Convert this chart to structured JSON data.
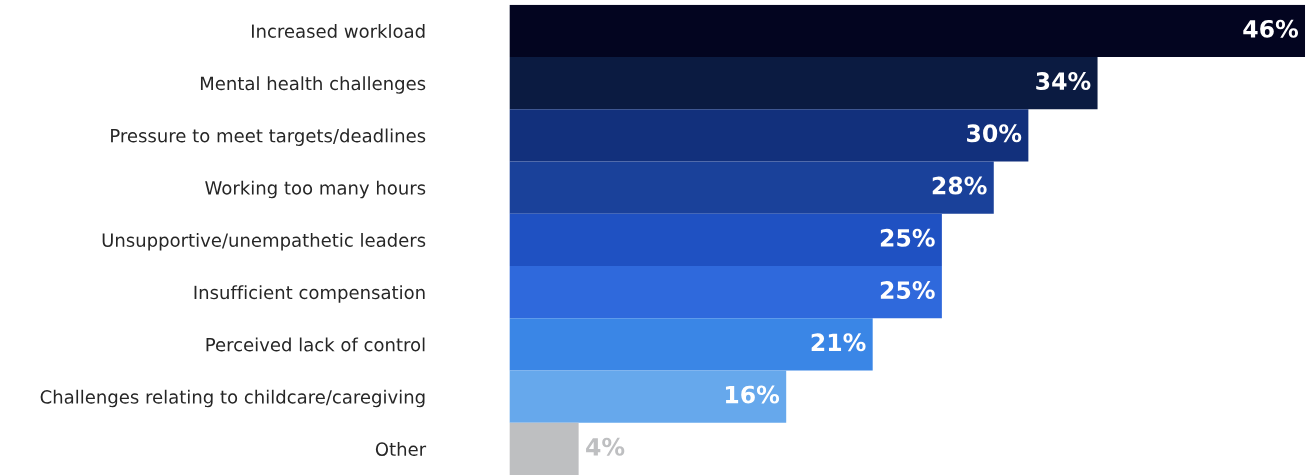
{
  "chart_data": {
    "type": "bar",
    "orientation": "horizontal",
    "categories": [
      "Increased workload",
      "Mental health challenges",
      "Pressure to meet targets/deadlines",
      "Working too many hours",
      "Unsupportive/unempathetic leaders",
      "Insufficient compensation",
      "Perceived lack of control",
      "Challenges relating to childcare/caregiving",
      "Other"
    ],
    "values": [
      46,
      34,
      30,
      28,
      25,
      25,
      21,
      16,
      4
    ],
    "colors": [
      "#030520",
      "#0b1b41",
      "#12307c",
      "#1a419a",
      "#1f51c2",
      "#2f69dc",
      "#3a86e6",
      "#66a8ec",
      "#bebfc1"
    ],
    "value_labels": [
      "46%",
      "34%",
      "30%",
      "28%",
      "25%",
      "25%",
      "21%",
      "16%",
      "4%"
    ],
    "grid": false,
    "legend": false
  }
}
